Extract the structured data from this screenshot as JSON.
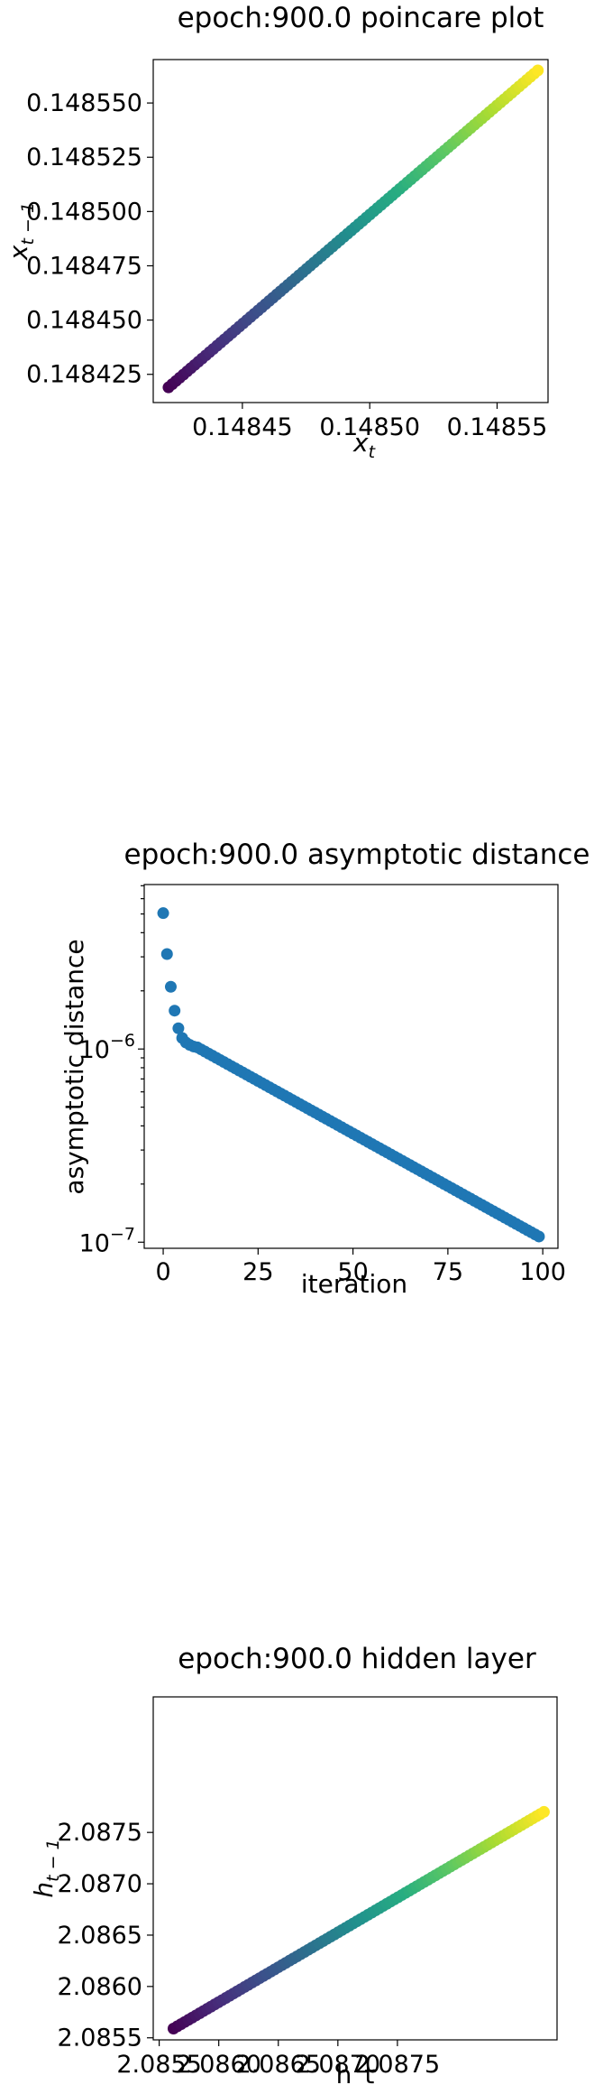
{
  "chart_data": [
    {
      "type": "scatter",
      "title": "epoch:900.0 poincare plot",
      "xlabel": "x_t",
      "ylabel": "x_{t-1}",
      "xlim": [
        0.148415,
        0.14857
      ],
      "ylim": [
        0.148412,
        0.14857
      ],
      "xticks": [
        0.14845,
        0.1485,
        0.14855
      ],
      "xtick_labels": [
        "0.14845",
        "0.14850",
        "0.14855"
      ],
      "yticks": [
        0.148425,
        0.14845,
        0.148475,
        0.1485,
        0.148525,
        0.14855
      ],
      "ytick_labels": [
        "0.148425",
        "0.148450",
        "0.148475",
        "0.148500",
        "0.148525",
        "0.148550"
      ],
      "colormap": "viridis",
      "grid": false,
      "points": {
        "count": 100,
        "x_start": 0.148421,
        "x_end": 0.148566,
        "y_start": 0.148419,
        "y_end": 0.148565
      }
    },
    {
      "type": "scatter",
      "title": "epoch:900.0 asymptotic distance",
      "xlabel": "iteration",
      "ylabel": "asymptotic distance",
      "xlim": [
        -5,
        104
      ],
      "ylim": [
        9.3e-08,
        7.1e-06
      ],
      "yscale": "log",
      "xticks": [
        0,
        25,
        50,
        75,
        100
      ],
      "xtick_labels": [
        "0",
        "25",
        "50",
        "75",
        "100"
      ],
      "ytick_labels": [
        {
          "base": "10",
          "exp": "−7",
          "value": 1e-07
        },
        {
          "base": "10",
          "exp": "−6",
          "value": 1e-06
        }
      ],
      "color": "#1f77b4",
      "grid": false,
      "head_points": [
        {
          "x": 0,
          "y": 5.05e-06
        },
        {
          "x": 1,
          "y": 3.1e-06
        },
        {
          "x": 2,
          "y": 2.1e-06
        },
        {
          "x": 3,
          "y": 1.58e-06
        },
        {
          "x": 4,
          "y": 1.28e-06
        },
        {
          "x": 5,
          "y": 1.14e-06
        },
        {
          "x": 6,
          "y": 1.08e-06
        },
        {
          "x": 7,
          "y": 1.05e-06
        },
        {
          "x": 8,
          "y": 1.03e-06
        }
      ],
      "decay": {
        "x_start": 9,
        "x_end": 99,
        "y_start": 1.02e-06,
        "y_end": 1.07e-07
      }
    },
    {
      "type": "scatter",
      "title": "epoch:900.0 hidden layer",
      "xlabel": "h_t",
      "ylabel": "h_{t-1}",
      "xlim": [
        2.08545,
        2.08884
      ],
      "ylim": [
        2.08548,
        2.08882
      ],
      "xticks": [
        2.0855,
        2.086,
        2.0865,
        2.087,
        2.0875
      ],
      "xtick_labels": [
        "2.0855",
        "2.0860",
        "2.0865",
        "2.0870",
        "2.0875"
      ],
      "yticks": [
        2.0855,
        2.086,
        2.0865,
        2.087,
        2.0875
      ],
      "ytick_labels": [
        "2.0855",
        "2.0860",
        "2.0865",
        "2.0870",
        "2.0875"
      ],
      "colormap": "viridis",
      "grid": false,
      "points": {
        "count": 100,
        "x_start": 2.08562,
        "x_end": 2.08873,
        "y_start": 2.08559,
        "y_end": 2.0877
      }
    }
  ]
}
